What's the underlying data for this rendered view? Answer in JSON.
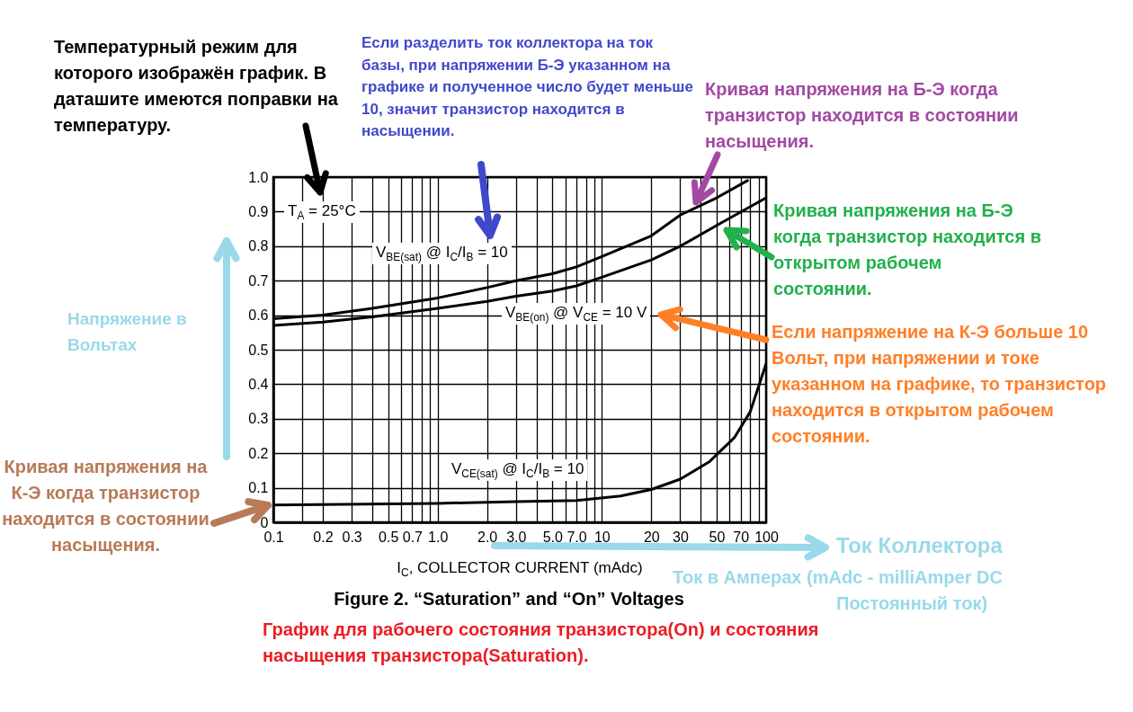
{
  "chart_data": {
    "type": "line",
    "title": "Figure 2. “Saturation” and “On” Voltages",
    "xlabel": "I$_{C}$, COLLECTOR CURRENT (mAdc)",
    "ylabel": "Напряжение в Вольтах",
    "annotations": [
      "T$_{A}$ = 25°C",
      "Температурный режим для которого изображён график. В даташите имеются поправки на температуру.",
      "Если разделить ток коллектора на ток базы, при напряжении Б-Э указанном на графике и полученное число будет меньше 10, значит транзистор находится в насыщении.",
      "Кривая напряжения на Б-Э когда транзистор находится в состоянии насыщения.",
      "Кривая напряжения на Б-Э когда транзистор находится в открытом рабочем состоянии.",
      "Если напряжение на К-Э больше 10 Вольт, при напряжении и токе указанном на графике, то транзистор находится в открытом рабочем состоянии.",
      "Кривая напряжения на К-Э когда транзистор находится в состоянии насыщения.",
      "Ток Коллектора",
      "Ток в Амперах (mAdc - milliAmper DC Постоянный ток)",
      "График для рабочего состояния транзистора(On) и состояния насыщения транзистора(Saturation)."
    ],
    "log": "x",
    "grid": true,
    "line_style": "solid",
    "xlim": [
      0.1,
      100
    ],
    "ylim": [
      0,
      1
    ],
    "xticks": [
      0.1,
      {
        "value": 0.15,
        "label": null
      },
      0.2,
      0.3,
      {
        "value": 0.4,
        "label": null
      },
      0.5,
      {
        "value": 0.6,
        "label": null
      },
      0.7,
      {
        "value": 0.8,
        "label": null
      },
      {
        "value": 0.9,
        "label": null
      },
      {
        "value": 1,
        "label": "1.0"
      },
      {
        "value": 2,
        "label": "2.0"
      },
      {
        "value": 3,
        "label": "3.0"
      },
      {
        "value": 4,
        "label": null
      },
      {
        "value": 5,
        "label": "5.0"
      },
      {
        "value": 6,
        "label": null
      },
      {
        "value": 7,
        "label": "7.0"
      },
      {
        "value": 8,
        "label": null
      },
      {
        "value": 9,
        "label": null
      },
      10,
      20,
      30,
      {
        "value": 40,
        "label": null
      },
      50,
      {
        "value": 60,
        "label": null
      },
      70,
      {
        "value": 80,
        "label": null
      },
      {
        "value": 90,
        "label": null
      },
      100
    ],
    "yticks": [
      0,
      0.1,
      0.2,
      0.3,
      0.4,
      0.5,
      0.6,
      0.7,
      0.8,
      0.9,
      {
        "value": 1,
        "label": "1.0"
      }
    ],
    "series": [
      {
        "name": "V$_{BE(sat)}$ @ I$_{C}$/I$_{B}$ = 10",
        "color": "#000000",
        "x": [
          0.1,
          0.2,
          0.4,
          1,
          2,
          3,
          5,
          7,
          10,
          20,
          30,
          50,
          77
        ],
        "values": [
          0.59,
          0.6,
          0.62,
          0.65,
          0.68,
          0.7,
          0.72,
          0.74,
          0.77,
          0.83,
          0.89,
          0.94,
          0.99
        ]
      },
      {
        "name": "V$_{BE(on)}$ @ V$_{CE}$ = 10 V",
        "color": "#000000",
        "x": [
          0.1,
          0.2,
          0.4,
          1,
          2,
          3,
          5,
          7,
          10,
          20,
          30,
          50,
          100
        ],
        "values": [
          0.57,
          0.58,
          0.595,
          0.62,
          0.64,
          0.655,
          0.67,
          0.685,
          0.71,
          0.76,
          0.8,
          0.86,
          0.94
        ]
      },
      {
        "name": "V$_{CE(sat)}$ @ I$_{C}$/I$_{B}$ = 10",
        "color": "#000000",
        "x": [
          0.1,
          1,
          3,
          7,
          13,
          20,
          30,
          45,
          64,
          80,
          100
        ],
        "values": [
          0.05,
          0.055,
          0.06,
          0.063,
          0.076,
          0.095,
          0.125,
          0.175,
          0.245,
          0.32,
          0.46
        ]
      }
    ]
  }
}
